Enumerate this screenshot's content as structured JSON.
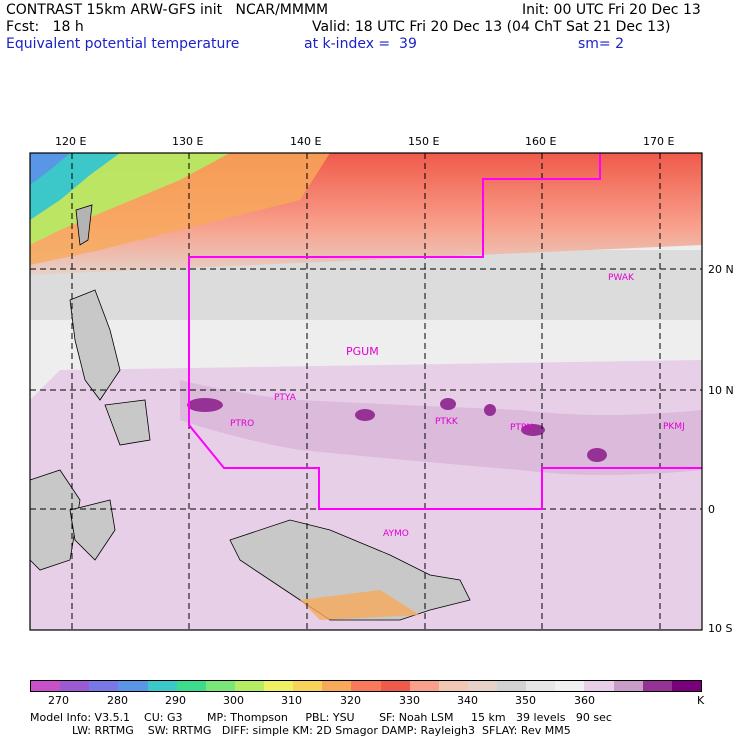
{
  "header": {
    "title": "CONTRAST 15km ARW-GFS init   NCAR/MMMM",
    "init": "Init: 00 UTC Fri 20 Dec 13",
    "fcst": "Fcst:   18 h",
    "valid": "Valid: 18 UTC Fri 20 Dec 13 (04 ChT Sat 21 Dec 13)",
    "field": "Equivalent potential temperature",
    "level": "at k-index =  39",
    "smooth": "sm= 2"
  },
  "map": {
    "lon_labels": [
      "120 E",
      "130 E",
      "140 E",
      "150 E",
      "160 E",
      "170 E"
    ],
    "lat_labels": [
      "20 N",
      "10 N",
      "0",
      "10 S"
    ],
    "stations": [
      "PWAK",
      "PGUM",
      "PTYA",
      "PTRO",
      "PTKK",
      "PTPN",
      "PKMJ",
      "AYMO"
    ],
    "colors": {
      "warm_band": "#f55a4a",
      "cool_fill": "#e8cfe8",
      "dry_fill": "#d2d2d2",
      "boundary": "#ff00ff"
    }
  },
  "colorbar": {
    "unit": "K",
    "labels": [
      "270",
      "280",
      "290",
      "300",
      "310",
      "320",
      "330",
      "340",
      "350",
      "360"
    ],
    "colors": [
      "#c850c8",
      "#9a5ad2",
      "#7a78e6",
      "#5a96e6",
      "#3cc8c8",
      "#3cdc8c",
      "#78e678",
      "#b4ec64",
      "#f0f064",
      "#f8d25a",
      "#f8aa5a",
      "#f87a5a",
      "#f05a4a",
      "#f8a08c",
      "#f0c8b4",
      "#e6d2c8",
      "#d2d2d2",
      "#e6e6e6",
      "#f0f0f0",
      "#e8cfe8",
      "#c89ec8",
      "#963296",
      "#78007a"
    ]
  },
  "footer": {
    "line1": "Model Info: V3.5.1    CU: G3       MP: Thompson     PBL: YSU       SF: Noah LSM     15 km   39 levels   90 sec",
    "line2": "            LW: RRTMG    SW: RRTMG   DIFF: simple KM: 2D Smagor DAMP: Rayleigh3  SFLAY: Rev MM5"
  }
}
